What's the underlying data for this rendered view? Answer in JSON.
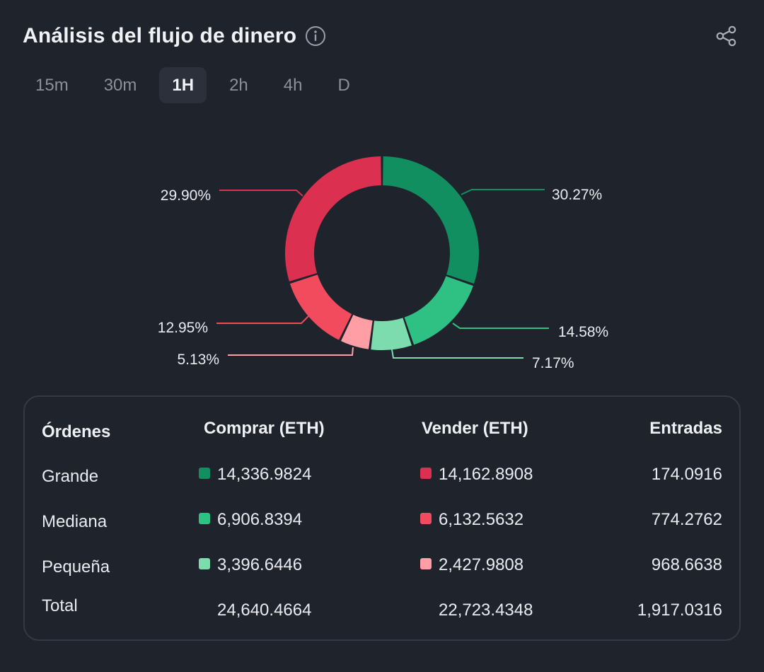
{
  "header": {
    "title": "Análisis del flujo de dinero"
  },
  "tabs": [
    {
      "label": "15m",
      "active": false
    },
    {
      "label": "30m",
      "active": false
    },
    {
      "label": "1H",
      "active": true
    },
    {
      "label": "2h",
      "active": false
    },
    {
      "label": "4h",
      "active": false
    },
    {
      "label": "D",
      "active": false
    }
  ],
  "colors": {
    "buy_large": "#128f60",
    "buy_medium": "#2fc184",
    "buy_small": "#7ddcae",
    "sell_large": "#dc3050",
    "sell_medium": "#f24b5e",
    "sell_small": "#ff9ea5"
  },
  "chart_data": {
    "type": "pie",
    "donut": true,
    "slices": [
      {
        "label": "30.27%",
        "value": 30.27,
        "color": "#128f60"
      },
      {
        "label": "14.58%",
        "value": 14.58,
        "color": "#2fc184"
      },
      {
        "label": "7.17%",
        "value": 7.17,
        "color": "#7ddcae"
      },
      {
        "label": "5.13%",
        "value": 5.13,
        "color": "#ff9ea5"
      },
      {
        "label": "12.95%",
        "value": 12.95,
        "color": "#f24b5e"
      },
      {
        "label": "29.90%",
        "value": 29.9,
        "color": "#dc3050"
      }
    ]
  },
  "table": {
    "headers": {
      "orders": "Órdenes",
      "buy": "Comprar (ETH)",
      "sell": "Vender (ETH)",
      "inflow": "Entradas"
    },
    "rows": [
      {
        "label": "Grande",
        "buy": "14,336.9824",
        "sell": "14,162.8908",
        "inflow": "174.0916"
      },
      {
        "label": "Mediana",
        "buy": "6,906.8394",
        "sell": "6,132.5632",
        "inflow": "774.2762"
      },
      {
        "label": "Pequeña",
        "buy": "3,396.6446",
        "sell": "2,427.9808",
        "inflow": "968.6638"
      }
    ],
    "total": {
      "label": "Total",
      "buy": "24,640.4664",
      "sell": "22,723.4348",
      "inflow": "1,917.0316"
    }
  }
}
